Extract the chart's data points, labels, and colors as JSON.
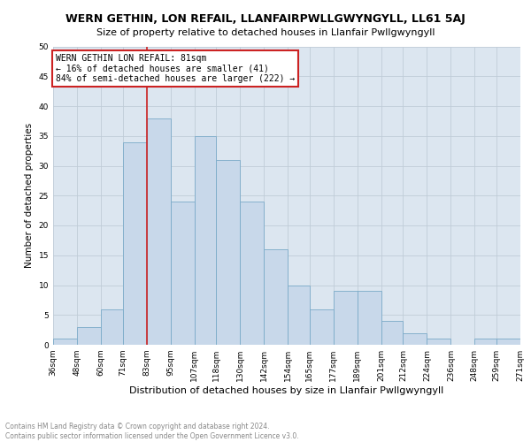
{
  "title": "WERN GETHIN, LON REFAIL, LLANFAIRPWLLGWYNGYLL, LL61 5AJ",
  "subtitle": "Size of property relative to detached houses in Llanfair Pwllgwyngyll",
  "xlabel": "Distribution of detached houses by size in Llanfair Pwllgwyngyll",
  "ylabel": "Number of detached properties",
  "footnote1": "Contains HM Land Registry data © Crown copyright and database right 2024.",
  "footnote2": "Contains public sector information licensed under the Open Government Licence v3.0.",
  "annotation_line1": "WERN GETHIN LON REFAIL: 81sqm",
  "annotation_line2": "← 16% of detached houses are smaller (41)",
  "annotation_line3": "84% of semi-detached houses are larger (222) →",
  "bar_left_edges": [
    36,
    48,
    60,
    71,
    83,
    95,
    107,
    118,
    130,
    142,
    154,
    165,
    177,
    189,
    201,
    212,
    224,
    236,
    248,
    259
  ],
  "bar_labels": [
    "36sqm",
    "48sqm",
    "60sqm",
    "71sqm",
    "83sqm",
    "95sqm",
    "107sqm",
    "118sqm",
    "130sqm",
    "142sqm",
    "154sqm",
    "165sqm",
    "177sqm",
    "189sqm",
    "201sqm",
    "212sqm",
    "224sqm",
    "236sqm",
    "248sqm",
    "259sqm",
    "271sqm"
  ],
  "bar_heights": [
    1,
    3,
    6,
    34,
    38,
    24,
    35,
    31,
    24,
    16,
    10,
    6,
    9,
    9,
    4,
    2,
    1,
    0,
    1,
    1
  ],
  "bar_widths": [
    12,
    12,
    11,
    12,
    12,
    12,
    11,
    12,
    12,
    12,
    11,
    12,
    12,
    12,
    11,
    12,
    12,
    12,
    11,
    12
  ],
  "bar_color": "#c8d8ea",
  "bar_edgecolor": "#7aaac8",
  "vline_x": 83,
  "vline_color": "#cc2222",
  "grid_color": "#c0ccd8",
  "background_color": "#dce6f0",
  "annotation_box_facecolor": "#ffffff",
  "annotation_box_edgecolor": "#cc2222",
  "ylim": [
    0,
    50
  ],
  "yticks": [
    0,
    5,
    10,
    15,
    20,
    25,
    30,
    35,
    40,
    45,
    50
  ],
  "xlim_left": 36,
  "xlim_right": 271
}
